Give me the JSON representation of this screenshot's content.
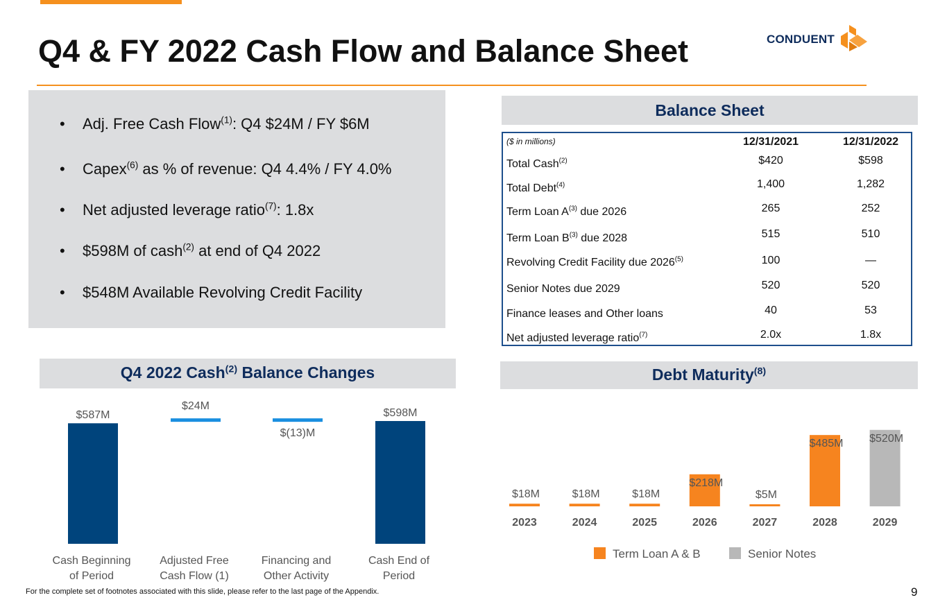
{
  "title": "Q4 & FY 2022 Cash Flow and Balance Sheet",
  "logo": {
    "text": "CONDUENT",
    "colors": {
      "orange": "#f5901e",
      "navy": "#0e2c5c"
    }
  },
  "bullets": [
    {
      "pre": "Adj. Free Cash Flow",
      "sup": "(1)",
      "post": ": Q4 $24M / FY $6M"
    },
    {
      "pre": "Capex",
      "sup": "(6)",
      "post": " as % of revenue: Q4 4.4% / FY 4.0%"
    },
    {
      "pre": "Net adjusted leverage ratio",
      "sup": "(7)",
      "post": ": 1.8x"
    },
    {
      "pre": "$598M of cash",
      "sup": "(2)",
      "post": " at end of Q4 2022"
    },
    {
      "pre": "$548M Available Revolving Credit Facility",
      "sup": "",
      "post": ""
    }
  ],
  "bullet_glyph": "•",
  "balance_sheet": {
    "heading": "Balance Sheet",
    "units_label": "($ in millions)",
    "col1": "12/31/2021",
    "col2": "12/31/2022",
    "rows": [
      {
        "label": "Total Cash",
        "sup": "(2)",
        "suffix": "",
        "v1": "$420",
        "v2": "$598"
      },
      {
        "label": "Total Debt",
        "sup": "(4)",
        "suffix": "",
        "v1": "1,400",
        "v2": "1,282"
      },
      {
        "label": "Term Loan A",
        "sup": "(3)",
        "suffix": " due 2026",
        "v1": "265",
        "v2": "252"
      },
      {
        "label": "Term Loan B",
        "sup": "(3)",
        "suffix": " due 2028",
        "v1": "515",
        "v2": "510"
      },
      {
        "label": "Revolving Credit Facility due 2026",
        "sup": "(5)",
        "suffix": "",
        "v1": "100",
        "v2": "—"
      },
      {
        "label": "Senior Notes due 2029",
        "sup": "",
        "suffix": "",
        "v1": "520",
        "v2": "520"
      },
      {
        "label": "Finance leases and Other loans",
        "sup": "",
        "suffix": "",
        "v1": "40",
        "v2": "53"
      },
      {
        "label": "Net adjusted leverage ratio",
        "sup": "(7)",
        "suffix": "",
        "v1": "2.0x",
        "v2": "1.8x"
      }
    ]
  },
  "cash_heading": {
    "pre": "Q4 2022 Cash",
    "sup": "(2)",
    "post": " Balance Changes"
  },
  "debt_heading": {
    "pre": "Debt Maturity",
    "sup": "(8)",
    "post": ""
  },
  "chart_data": [
    {
      "type": "bar",
      "subtype": "waterfall",
      "categories": [
        "Cash Beginning of  Period",
        "Adjusted Free Cash Flow (1)",
        "Financing and Other Activity",
        "Cash End of Period"
      ],
      "category_lines": [
        [
          "Cash Beginning",
          "of  Period"
        ],
        [
          "Adjusted Free",
          "Cash Flow (1)"
        ],
        [
          "Financing and",
          "Other Activity"
        ],
        [
          "Cash End of",
          "Period"
        ]
      ],
      "values": [
        587,
        24,
        -13,
        598
      ],
      "kinds": [
        "total",
        "delta",
        "delta",
        "total"
      ],
      "data_labels": [
        "$587M",
        "$24M",
        "$(13)M",
        "$598M"
      ],
      "colors": {
        "total": "#00447c",
        "delta": "#1a8fe0"
      },
      "grid": false
    },
    {
      "type": "bar",
      "categories": [
        "2023",
        "2024",
        "2025",
        "2026",
        "2027",
        "2028",
        "2029"
      ],
      "series": [
        {
          "name": "Term Loan A & B",
          "values": [
            18,
            18,
            18,
            218,
            5,
            485,
            0
          ],
          "color": "#f6841f"
        },
        {
          "name": "Senior Notes",
          "values": [
            0,
            0,
            0,
            0,
            0,
            0,
            520
          ],
          "color": "#b8b8b8"
        }
      ],
      "data_labels": [
        "$18M",
        "$18M",
        "$18M",
        "$218M",
        "$5M",
        "$485M",
        "$520M"
      ],
      "legend": "bottom",
      "grid": false
    }
  ],
  "footnote": "For the complete set of footnotes associated with this slide, please refer to the last page of the Appendix.",
  "page_number": "9"
}
